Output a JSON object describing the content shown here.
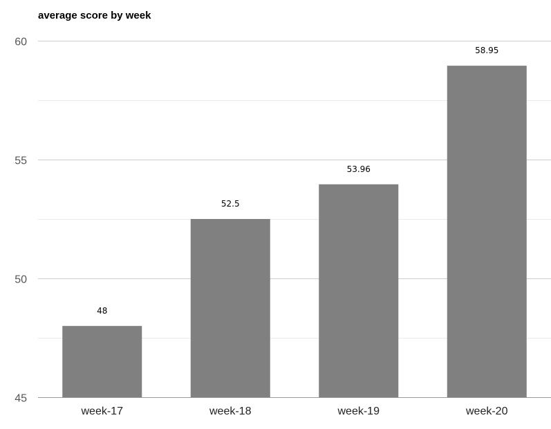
{
  "chart_data": {
    "type": "bar",
    "title": "average score by week",
    "xlabel": "",
    "ylabel": "",
    "categories": [
      "week-17",
      "week-18",
      "week-19",
      "week-20"
    ],
    "values": [
      48,
      52.5,
      53.96,
      58.95
    ],
    "data_labels": [
      "48",
      "52.5",
      "53.96",
      "58.95"
    ],
    "ylim": [
      45,
      60
    ],
    "yticks": [
      45,
      50,
      55,
      60
    ],
    "grid": true,
    "legend": "none",
    "colors": {
      "bar": "#808080",
      "major_grid": "#cccccc",
      "minor_grid": "#ebebeb"
    }
  }
}
